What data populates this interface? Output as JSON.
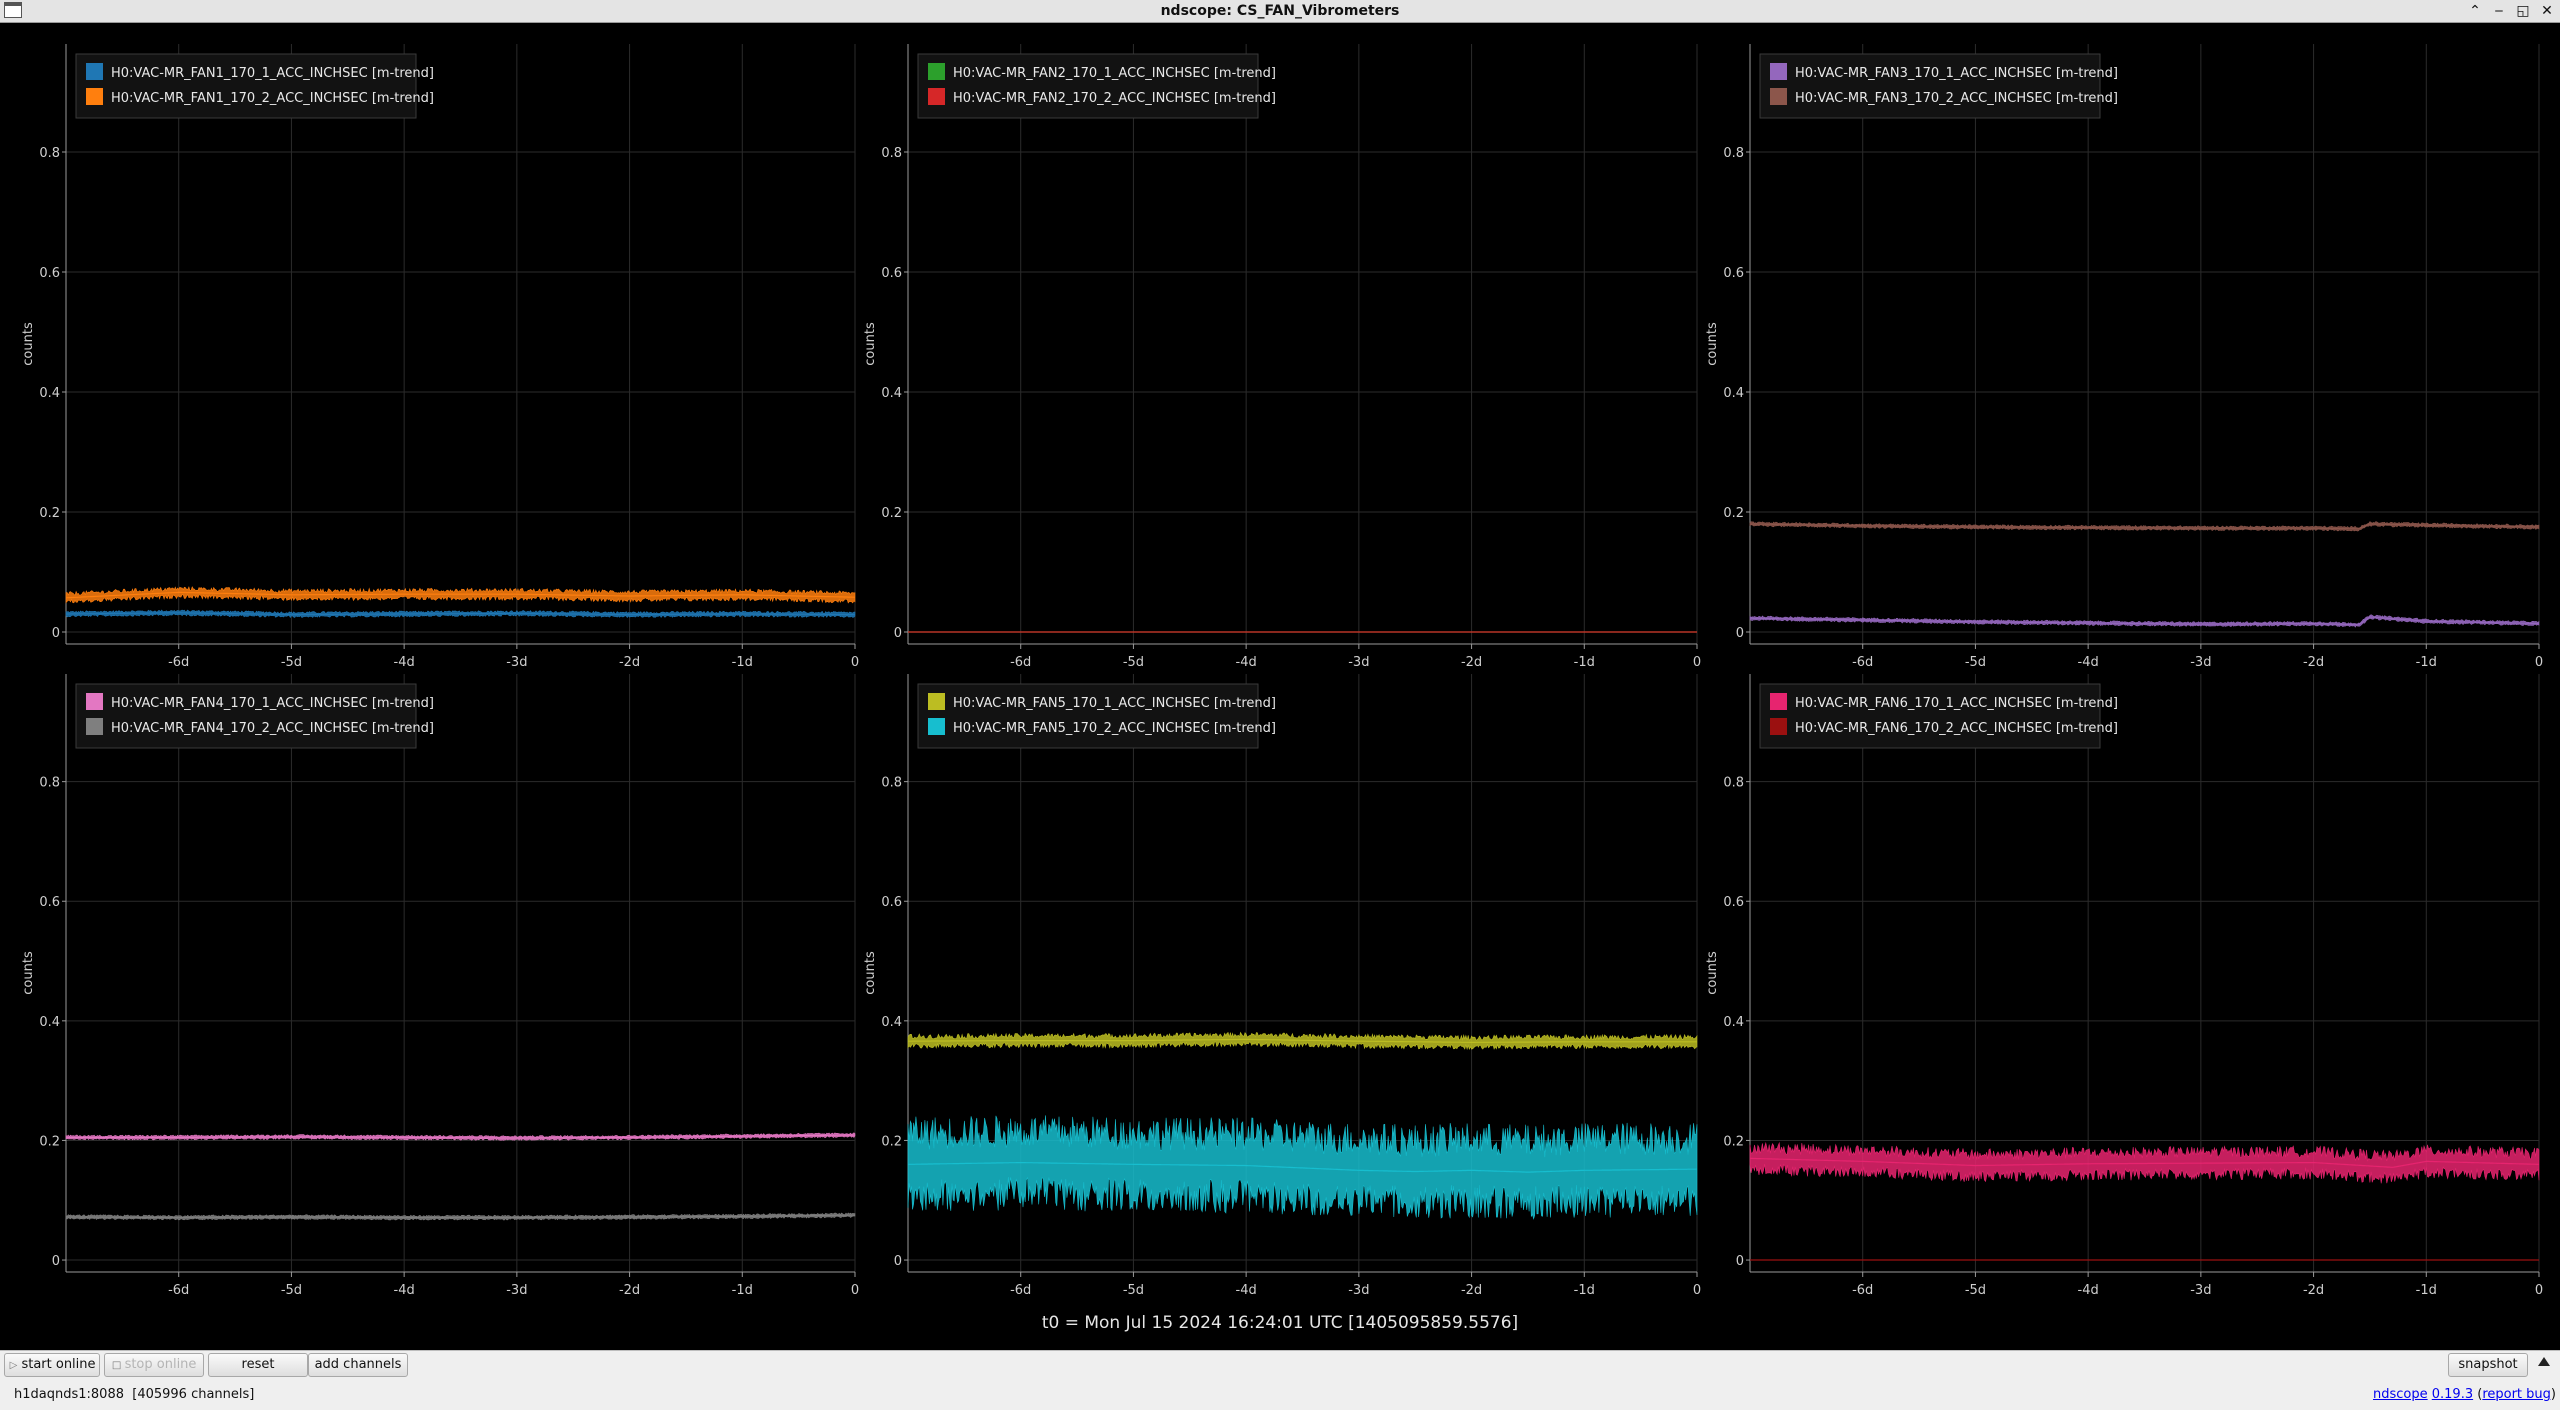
{
  "window": {
    "title": "ndscope: CS_FAN_Vibrometers"
  },
  "common": {
    "ylabel": "counts",
    "yticks": [
      0,
      0.2,
      0.4,
      0.6,
      0.8
    ],
    "xticks": [
      "-6d",
      "-5d",
      "-4d",
      "-3d",
      "-2d",
      "-1d",
      "0"
    ],
    "ylim": [
      -0.02,
      0.98
    ],
    "xlim_days": [
      -7.0,
      0.0
    ],
    "background": "#000000",
    "grid": true
  },
  "t0_label": "t0 = Mon Jul 15 2024 16:24:01 UTC [1405095859.5576]",
  "chart_data": [
    {
      "type": "line",
      "ylabel": "counts",
      "x_unit": "days",
      "series": [
        {
          "name": "H0:VAC-MR_FAN1_170_1_ACC_INCHSEC [m-trend]",
          "color": "#1f77b4",
          "x": [
            -7,
            -6,
            -5,
            -4,
            -3,
            -2,
            -1,
            0
          ],
          "y": [
            0.03,
            0.032,
            0.029,
            0.03,
            0.031,
            0.029,
            0.03,
            0.029
          ],
          "band": 0.005
        },
        {
          "name": "H0:VAC-MR_FAN1_170_2_ACC_INCHSEC [m-trend]",
          "color": "#ff7f0e",
          "x": [
            -7,
            -6,
            -5,
            -4,
            -3,
            -2,
            -1,
            0
          ],
          "y": [
            0.057,
            0.066,
            0.062,
            0.063,
            0.063,
            0.06,
            0.062,
            0.058
          ],
          "band": 0.01
        }
      ]
    },
    {
      "type": "line",
      "ylabel": "counts",
      "x_unit": "days",
      "series": [
        {
          "name": "H0:VAC-MR_FAN2_170_1_ACC_INCHSEC [m-trend]",
          "color": "#2ca02c",
          "x": [
            -7,
            0
          ],
          "y": [
            0.0,
            0.0
          ],
          "band": 0
        },
        {
          "name": "H0:VAC-MR_FAN2_170_2_ACC_INCHSEC [m-trend]",
          "color": "#d62728",
          "x": [
            -7,
            0
          ],
          "y": [
            0.0,
            0.0
          ],
          "band": 0
        }
      ]
    },
    {
      "type": "line",
      "ylabel": "counts",
      "x_unit": "days",
      "series": [
        {
          "name": "H0:VAC-MR_FAN3_170_1_ACC_INCHSEC [m-trend]",
          "color": "#9467bd",
          "x": [
            -7,
            -6,
            -5,
            -4,
            -3,
            -2,
            -1.6,
            -1.5,
            -1,
            0
          ],
          "y": [
            0.023,
            0.02,
            0.017,
            0.015,
            0.013,
            0.014,
            0.012,
            0.025,
            0.018,
            0.014
          ],
          "band": 0.004
        },
        {
          "name": "H0:VAC-MR_FAN3_170_2_ACC_INCHSEC [m-trend]",
          "color": "#8c564b",
          "x": [
            -7,
            -6,
            -5,
            -4,
            -3,
            -2,
            -1.6,
            -1.5,
            -1,
            0
          ],
          "y": [
            0.18,
            0.177,
            0.175,
            0.174,
            0.173,
            0.173,
            0.172,
            0.18,
            0.178,
            0.175
          ],
          "band": 0.004
        }
      ]
    },
    {
      "type": "line",
      "ylabel": "counts",
      "x_unit": "days",
      "series": [
        {
          "name": "H0:VAC-MR_FAN4_170_1_ACC_INCHSEC [m-trend]",
          "color": "#e377c2",
          "x": [
            -7,
            -6,
            -5,
            -4,
            -3,
            -2,
            -1,
            0
          ],
          "y": [
            0.205,
            0.205,
            0.206,
            0.205,
            0.204,
            0.205,
            0.207,
            0.209
          ],
          "band": 0.004
        },
        {
          "name": "H0:VAC-MR_FAN4_170_2_ACC_INCHSEC [m-trend]",
          "color": "#7f7f7f",
          "x": [
            -7,
            -6,
            -5,
            -4,
            -3,
            -2,
            -1,
            0
          ],
          "y": [
            0.072,
            0.071,
            0.072,
            0.071,
            0.071,
            0.072,
            0.073,
            0.075
          ],
          "band": 0.004
        }
      ]
    },
    {
      "type": "line",
      "ylabel": "counts",
      "x_unit": "days",
      "series": [
        {
          "name": "H0:VAC-MR_FAN5_170_1_ACC_INCHSEC [m-trend]",
          "color": "#bcbd22",
          "x": [
            -7,
            -6,
            -5,
            -4,
            -3,
            -2,
            -1,
            0
          ],
          "y": [
            0.366,
            0.367,
            0.367,
            0.369,
            0.366,
            0.364,
            0.365,
            0.365
          ],
          "band": 0.012
        },
        {
          "name": "H0:VAC-MR_FAN5_170_2_ACC_INCHSEC [m-trend]",
          "color": "#17becf",
          "x": [
            -7,
            -6,
            -5,
            -4,
            -3,
            -2.5,
            -2,
            -1.5,
            -1,
            0
          ],
          "y": [
            0.16,
            0.163,
            0.16,
            0.158,
            0.15,
            0.148,
            0.15,
            0.147,
            0.15,
            0.152
          ],
          "band": 0.08
        }
      ]
    },
    {
      "type": "line",
      "ylabel": "counts",
      "x_unit": "days",
      "series": [
        {
          "name": "H0:VAC-MR_FAN6_170_1_ACC_INCHSEC [m-trend]",
          "color": "#e7246f",
          "x": [
            -7,
            -6,
            -5,
            -4,
            -3,
            -2,
            -1.3,
            -1,
            0
          ],
          "y": [
            0.17,
            0.165,
            0.158,
            0.161,
            0.162,
            0.163,
            0.155,
            0.165,
            0.16
          ],
          "band": 0.028
        },
        {
          "name": "H0:VAC-MR_FAN6_170_2_ACC_INCHSEC [m-trend]",
          "color": "#9b1010",
          "x": [
            -7,
            0
          ],
          "y": [
            0.0,
            0.0
          ],
          "band": 0
        }
      ]
    }
  ],
  "buttons": {
    "start_online": "start online",
    "stop_online": "stop online",
    "reset": "reset",
    "add_channels": "add channels",
    "snapshot": "snapshot"
  },
  "status": {
    "server": "h1daqnds1:8088  [405996 channels]",
    "app_name": "ndscope",
    "version": "0.19.3",
    "report_open": "(",
    "report_link": "report bug",
    "report_close": ")"
  }
}
